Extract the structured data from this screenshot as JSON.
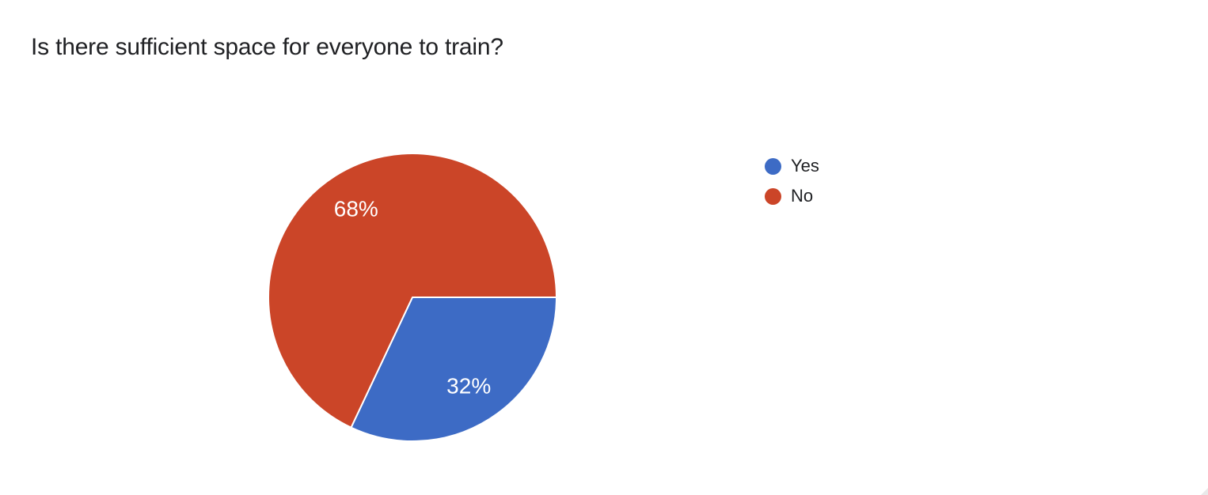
{
  "chart_data": {
    "type": "pie",
    "title": "Is there sufficient space for everyone to train?",
    "labels": [
      "Yes",
      "No"
    ],
    "values": [
      32,
      68
    ],
    "percent_labels": [
      "32%",
      "68%"
    ],
    "colors": [
      "#3d6bc5",
      "#cb4528"
    ],
    "title_color": "#202124",
    "label_color": "#ffffff",
    "slice_border_color": "#ffffff",
    "legend_position": "right",
    "start_angle_deg": 0,
    "direction": "clockwise"
  }
}
